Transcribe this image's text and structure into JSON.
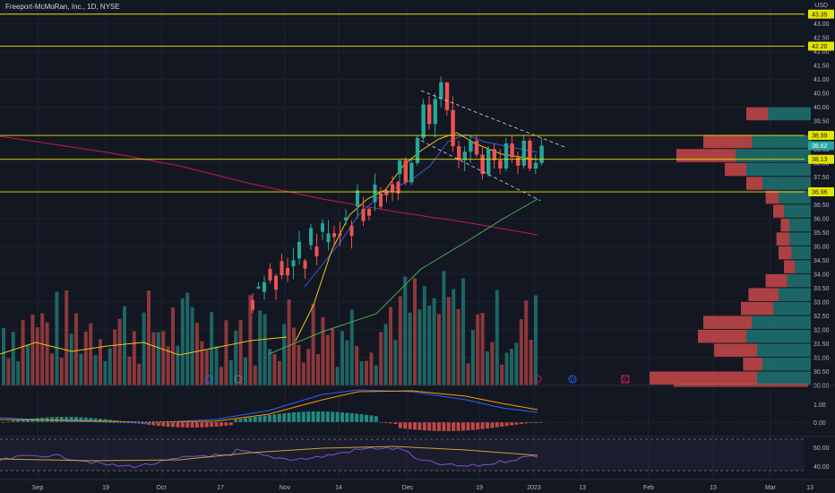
{
  "header": {
    "title": "Freeport-McMoRan, Inc., 1D, NYSE",
    "currency": "USD"
  },
  "colors": {
    "background": "#131722",
    "up": "#26a69a",
    "down": "#ef5350",
    "level_line": "#e6e600",
    "ma_fast": "#f0c419",
    "ma_mid": "#3b5bdb",
    "ma_slow": "#4caf50",
    "ma_long": "#c2185b",
    "macd": "#2962ff",
    "macd_signal": "#ff9800",
    "rsi": "#7e57c2",
    "rsi_ma": "#c8a232"
  },
  "chart_data": {
    "type": "candlestick",
    "x_ticks": [
      "Sep",
      "19",
      "Oct",
      "17",
      "Nov",
      "14",
      "Dec",
      "19",
      "2023",
      "13",
      "Feb",
      "13",
      "Mar",
      "13"
    ],
    "price_ticks": [
      "43.00",
      "42.50",
      "42.00",
      "41.50",
      "41.00",
      "40.50",
      "40.00",
      "39.50",
      "39.00",
      "38.50",
      "38.00",
      "37.50",
      "37.00",
      "36.50",
      "36.00",
      "35.50",
      "35.00",
      "34.50",
      "34.00",
      "33.50",
      "33.00",
      "32.50",
      "32.00",
      "31.50",
      "31.00",
      "30.50",
      "30.00"
    ],
    "ylim": [
      30.0,
      43.6
    ],
    "level_lines": [
      {
        "value": 43.35,
        "label": "43.35"
      },
      {
        "value": 42.2,
        "label": "42.20"
      },
      {
        "value": 38.99,
        "label": "38.99"
      },
      {
        "value": 38.13,
        "label": "38.13"
      },
      {
        "value": 36.96,
        "label": "36.96"
      }
    ],
    "last_price": {
      "value": 38.62,
      "label": "38.62"
    },
    "candles_ohlc": [
      [
        37.6,
        38.0,
        37.3,
        38.1
      ],
      [
        38.1,
        38.2,
        37.2,
        37.3
      ],
      [
        37.3,
        38.2,
        37.2,
        38.0
      ],
      [
        38.0,
        39.0,
        37.9,
        38.9
      ],
      [
        38.9,
        40.3,
        38.8,
        40.1
      ],
      [
        40.1,
        40.4,
        39.2,
        39.4
      ],
      [
        39.4,
        40.5,
        38.9,
        40.3
      ],
      [
        40.3,
        41.1,
        40.0,
        40.9
      ],
      [
        40.9,
        40.9,
        39.7,
        39.9
      ],
      [
        39.9,
        40.4,
        38.4,
        38.6
      ],
      [
        38.6,
        38.8,
        37.8,
        38.1
      ],
      [
        38.1,
        38.6,
        37.7,
        38.4
      ],
      [
        38.4,
        39.0,
        38.0,
        38.8
      ],
      [
        38.8,
        39.0,
        38.2,
        38.3
      ],
      [
        38.3,
        38.6,
        37.4,
        37.6
      ],
      [
        37.6,
        38.6,
        37.5,
        38.5
      ],
      [
        38.5,
        38.7,
        37.8,
        38.1
      ],
      [
        38.1,
        38.5,
        37.6,
        37.8
      ],
      [
        37.8,
        38.9,
        37.7,
        38.7
      ],
      [
        38.7,
        39.0,
        38.0,
        38.2
      ],
      [
        38.2,
        38.4,
        37.6,
        37.9
      ],
      [
        37.9,
        39.0,
        37.8,
        38.8
      ],
      [
        38.8,
        38.9,
        37.7,
        37.8
      ],
      [
        37.8,
        38.3,
        37.6,
        38.0
      ],
      [
        38.0,
        38.9,
        37.9,
        38.62
      ]
    ],
    "volume_profile_levels": [
      {
        "price": 39.5,
        "buy": 40,
        "sell": 20
      },
      {
        "price": 38.5,
        "buy": 55,
        "sell": 45
      },
      {
        "price": 38.0,
        "buy": 70,
        "sell": 55
      },
      {
        "price": 37.5,
        "buy": 60,
        "sell": 20
      },
      {
        "price": 37.0,
        "buy": 45,
        "sell": 15
      },
      {
        "price": 36.5,
        "buy": 30,
        "sell": 12
      },
      {
        "price": 36.0,
        "buy": 25,
        "sell": 10
      },
      {
        "price": 35.5,
        "buy": 20,
        "sell": 8
      },
      {
        "price": 35.0,
        "buy": 20,
        "sell": 12
      },
      {
        "price": 34.5,
        "buy": 18,
        "sell": 12
      },
      {
        "price": 34.0,
        "buy": 15,
        "sell": 10
      },
      {
        "price": 33.5,
        "buy": 22,
        "sell": 20
      },
      {
        "price": 33.0,
        "buy": 30,
        "sell": 28
      },
      {
        "price": 32.5,
        "buy": 35,
        "sell": 30
      },
      {
        "price": 32.0,
        "buy": 55,
        "sell": 45
      },
      {
        "price": 31.5,
        "buy": 60,
        "sell": 45
      },
      {
        "price": 31.0,
        "buy": 50,
        "sell": 40
      },
      {
        "price": 30.5,
        "buy": 45,
        "sell": 18
      },
      {
        "price": 30.0,
        "buy": 50,
        "sell": 100
      }
    ],
    "macd_ticks": [
      "1.00",
      "0.00"
    ],
    "rsi_ticks": [
      "60.00",
      "40.00"
    ],
    "event_markers": [
      "D",
      "D",
      "E"
    ]
  }
}
